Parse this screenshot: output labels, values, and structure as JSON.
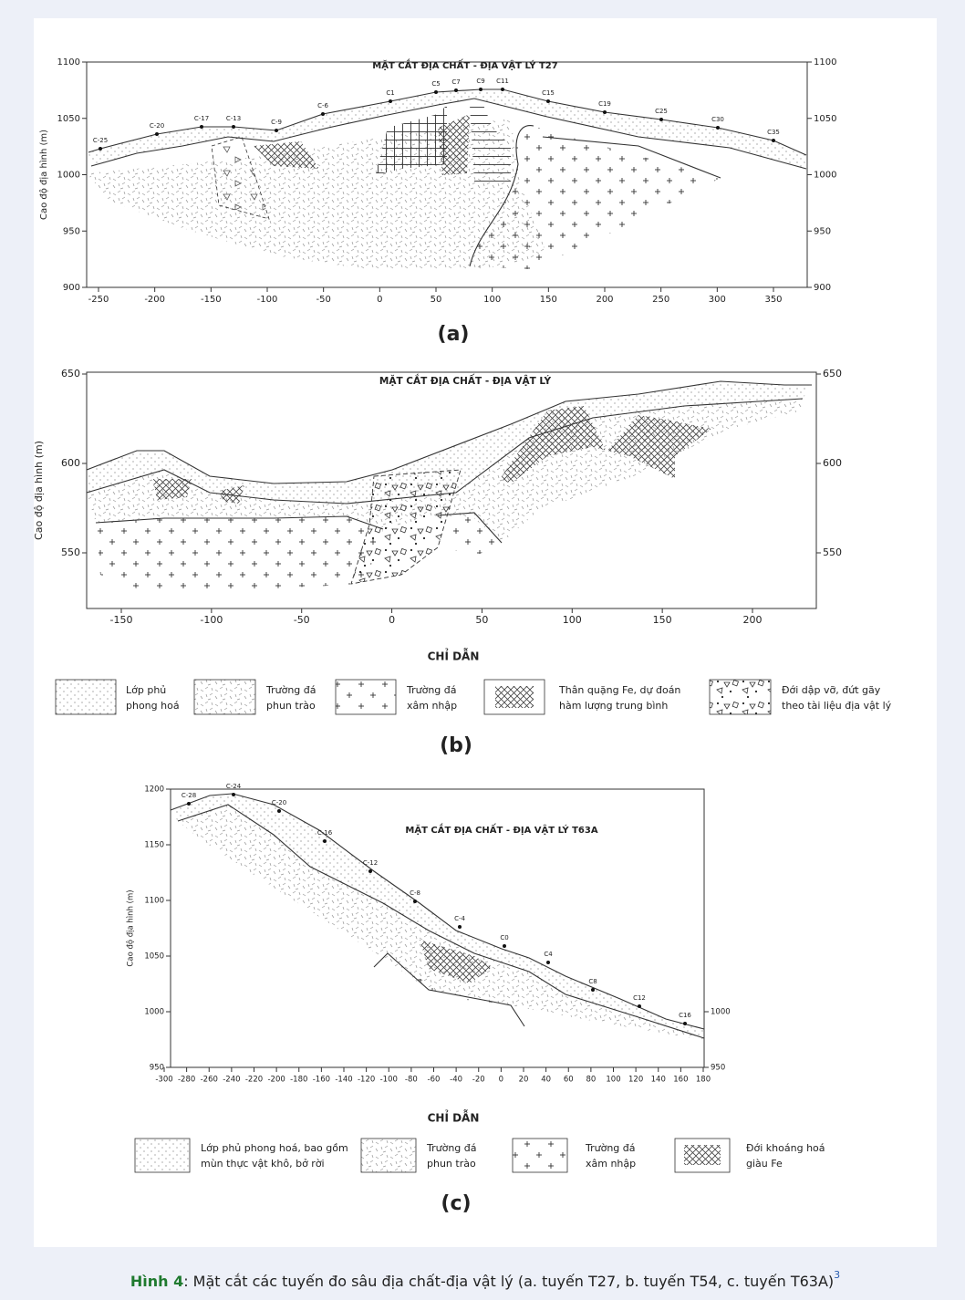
{
  "panels": [
    {
      "title": "MẶT CẮT ĐỊA CHẤT - ĐỊA VẬT LÝ T27",
      "y_axis_label": "Cao độ địa hình (m)",
      "yticks": [
        1100,
        1050,
        1000,
        950,
        900
      ],
      "y2ticks": [
        1100,
        1050,
        1000,
        950,
        900
      ],
      "xticks": [
        -250,
        -200,
        -150,
        -100,
        -50,
        0,
        50,
        100,
        150,
        200,
        250,
        300,
        350
      ],
      "stations": [
        "C-25",
        "C-20",
        "C-17",
        "C-13",
        "C-9",
        "C-6",
        "C1",
        "C5",
        "C7",
        "C9",
        "C11",
        "C15",
        "C19",
        "C25",
        "C30",
        "C35"
      ],
      "label": "(a)"
    },
    {
      "title": "MẶT CẮT ĐỊA CHẤT - ĐỊA VẬT LÝ",
      "y_axis_label": "Cao độ địa hình (m)",
      "yticks": [
        650,
        600,
        550
      ],
      "y2ticks": [
        650,
        600,
        550
      ],
      "xticks": [
        -150,
        -100,
        -50,
        0,
        50,
        100,
        150,
        200
      ],
      "legend": {
        "title": "CHỈ DẪN",
        "items": [
          [
            "Lớp phủ",
            "phong hoá"
          ],
          [
            "Trường đá",
            "phun trào"
          ],
          [
            "Trường đá",
            "xâm nhập"
          ],
          [
            "Thân quặng Fe, dự đoán",
            "hàm lượng trung bình"
          ],
          [
            "Đới dập vỡ, đứt gãy",
            "theo tài liệu địa vật lý"
          ]
        ]
      },
      "label": "(b)"
    },
    {
      "title": "MẶT CẮT ĐỊA CHẤT - ĐỊA VẬT LÝ T63A",
      "y_axis_label": "Cao độ địa hình (m)",
      "yticks": [
        1200,
        1150,
        1100,
        1050,
        1000,
        950
      ],
      "y2ticks": [
        1000,
        950
      ],
      "xticks": [
        -300,
        -280,
        -260,
        -240,
        -220,
        -200,
        -180,
        -160,
        -140,
        -120,
        -100,
        -80,
        -60,
        -40,
        -20,
        0,
        20,
        40,
        60,
        80,
        100,
        120,
        140,
        160,
        180
      ],
      "stations": [
        "C-28",
        "C-24",
        "C-20",
        "C-16",
        "C-12",
        "C-8",
        "C-4",
        "C0",
        "C4",
        "C8",
        "C12",
        "C16"
      ],
      "legend": {
        "title": "CHỈ DẪN",
        "items": [
          [
            "Lớp phủ phong hoá, bao gồm",
            "mùn thực vật khô, bở rời"
          ],
          [
            "Trường đá",
            "phun trào"
          ],
          [
            "Trường đá",
            "xâm nhập"
          ],
          [
            "Đới khoáng hoá",
            "giàu Fe"
          ]
        ]
      },
      "label": "(c)"
    }
  ],
  "caption": {
    "label": "Hình 4",
    "text": ": Mặt cắt các tuyến đo sâu địa chất-địa vật lý (a. tuyến T27, b. tuyến T54, c. tuyến T63A)",
    "ref": "3"
  }
}
